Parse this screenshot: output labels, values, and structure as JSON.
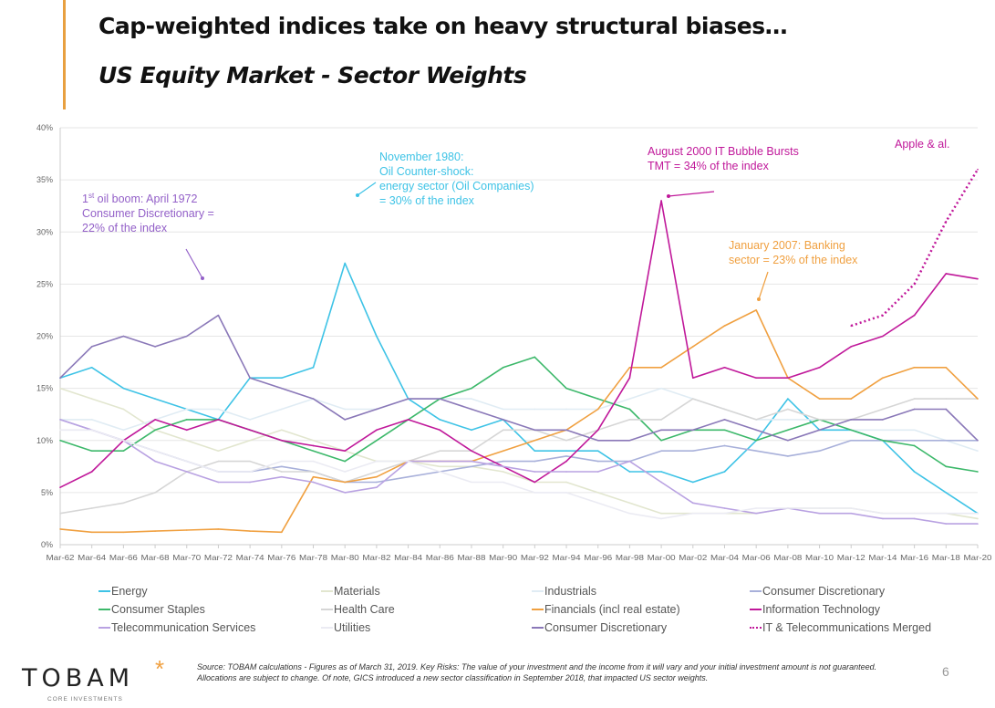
{
  "header": {
    "title": "Cap-weighted indices take on heavy structural biases…",
    "subtitle": "US Equity Market - Sector Weights"
  },
  "chart_data": {
    "type": "line",
    "title": "",
    "xlabel": "",
    "ylabel": "",
    "ylim": [
      0,
      40
    ],
    "y_ticks": [
      "0%",
      "5%",
      "10%",
      "15%",
      "20%",
      "25%",
      "30%",
      "35%",
      "40%"
    ],
    "y_tick_values": [
      0,
      5,
      10,
      15,
      20,
      25,
      30,
      35,
      40
    ],
    "x_ticks": [
      "Mar-62",
      "Mar-64",
      "Mar-66",
      "Mar-68",
      "Mar-70",
      "Mar-72",
      "Mar-74",
      "Mar-76",
      "Mar-78",
      "Mar-80",
      "Mar-82",
      "Mar-84",
      "Mar-86",
      "Mar-88",
      "Mar-90",
      "Mar-92",
      "Mar-94",
      "Mar-96",
      "Mar-98",
      "Mar-00",
      "Mar-02",
      "Mar-04",
      "Mar-06",
      "Mar-08",
      "Mar-10",
      "Mar-12",
      "Mar-14",
      "Mar-16",
      "Mar-18",
      "Mar-20"
    ],
    "x": [
      1962,
      1964,
      1966,
      1968,
      1970,
      1972,
      1974,
      1976,
      1978,
      1980,
      1982,
      1984,
      1986,
      1988,
      1990,
      1992,
      1994,
      1996,
      1998,
      2000,
      2002,
      2004,
      2006,
      2008,
      2010,
      2012,
      2014,
      2016,
      2018,
      2020
    ],
    "grid": true,
    "legend_position": "bottom",
    "series": [
      {
        "name": "Energy",
        "color": "#3ec3e6",
        "style": "solid",
        "values": [
          16,
          17,
          15,
          14,
          13,
          12,
          16,
          16,
          17,
          27,
          20,
          14,
          12,
          11,
          12,
          9,
          9,
          9,
          7,
          7,
          6,
          7,
          10,
          14,
          11,
          11,
          10,
          7,
          5,
          3
        ]
      },
      {
        "name": "Materials",
        "color": "#e2e6cf",
        "style": "solid",
        "values": [
          15,
          14,
          13,
          11,
          10,
          9,
          10,
          11,
          10,
          9,
          8,
          8,
          7.5,
          7.5,
          7,
          6,
          6,
          5,
          4,
          3,
          3,
          3,
          3,
          3.5,
          3.5,
          3.5,
          3,
          3,
          3,
          2.5
        ]
      },
      {
        "name": "Industrials",
        "color": "#e0ecf4",
        "style": "solid",
        "values": [
          12,
          12,
          11,
          12,
          13,
          13,
          12,
          13,
          14,
          13,
          13,
          14,
          14,
          14,
          13,
          13,
          13,
          13,
          14,
          15,
          14,
          13,
          12,
          12,
          12,
          11,
          11,
          11,
          10,
          9
        ]
      },
      {
        "name": "Consumer Discretionary",
        "color": "#a8b0da",
        "style": "solid",
        "values": [
          12,
          11,
          10,
          9,
          8,
          7,
          7,
          7.5,
          7,
          6,
          6,
          6.5,
          7,
          7.5,
          8,
          8,
          8.5,
          8,
          8,
          9,
          9,
          9.5,
          9,
          8.5,
          9,
          10,
          10,
          10,
          10,
          10
        ]
      },
      {
        "name": "Consumer Staples",
        "color": "#3cb86a",
        "style": "solid",
        "values": [
          10,
          9,
          9,
          11,
          12,
          12,
          11,
          10,
          9,
          8,
          10,
          12,
          14,
          15,
          17,
          18,
          15,
          14,
          13,
          10,
          11,
          11,
          10,
          11,
          12,
          11,
          10,
          9.5,
          7.5,
          7
        ]
      },
      {
        "name": "Health Care",
        "color": "#d6d6d6",
        "style": "solid",
        "values": [
          3,
          3.5,
          4,
          5,
          7,
          8,
          8,
          7,
          7,
          6,
          7,
          8,
          9,
          9,
          11,
          11,
          10,
          11,
          12,
          12,
          14,
          13,
          12,
          13,
          12,
          12,
          13,
          14,
          14,
          14
        ]
      },
      {
        "name": "Financials (incl real estate)",
        "color": "#f0a040",
        "style": "solid",
        "values": [
          1.5,
          1.2,
          1.2,
          1.3,
          1.4,
          1.5,
          1.3,
          1.2,
          6.5,
          6,
          6.5,
          8,
          8,
          8,
          9,
          10,
          11,
          13,
          17,
          17,
          19,
          21,
          22.5,
          16,
          14,
          14,
          16,
          17,
          17,
          14
        ]
      },
      {
        "name": "Information Technology",
        "color": "#c0189a",
        "style": "solid",
        "values": [
          5.5,
          7,
          10,
          12,
          11,
          12,
          11,
          10,
          9.5,
          9,
          11,
          12,
          11,
          9,
          7.5,
          6,
          8,
          11,
          16,
          33,
          16,
          17,
          16,
          16,
          17,
          19,
          20,
          22,
          26,
          25.5
        ]
      },
      {
        "name": "Telecommunication Services",
        "color": "#b9a2e2",
        "style": "solid",
        "values": [
          12,
          11,
          10,
          8,
          7,
          6,
          6,
          6.5,
          6,
          5,
          5.5,
          8,
          8,
          8,
          7.5,
          7,
          7,
          7,
          8,
          6,
          4,
          3.5,
          3,
          3.5,
          3,
          3,
          2.5,
          2.5,
          2,
          2
        ]
      },
      {
        "name": "Utilities",
        "color": "#ebebf3",
        "style": "solid",
        "values": [
          11,
          11,
          10,
          9,
          8,
          7,
          7,
          8,
          8,
          7,
          8,
          8,
          7,
          6,
          6,
          5,
          5,
          4,
          3,
          2.5,
          3,
          3,
          3.5,
          3.5,
          3.5,
          3.5,
          3,
          3,
          3,
          3
        ]
      },
      {
        "name": "Consumer Discretionary",
        "color": "#8a78b8",
        "style": "solid",
        "values": [
          16,
          19,
          20,
          19,
          20,
          22,
          16,
          15,
          14,
          12,
          13,
          14,
          14,
          13,
          12,
          11,
          11,
          10,
          10,
          11,
          11,
          12,
          11,
          10,
          11,
          12,
          12,
          13,
          13,
          10
        ]
      },
      {
        "name": "IT & Telecommunications Merged",
        "color": "#c0189a",
        "style": "dotted",
        "values": [
          null,
          null,
          null,
          null,
          null,
          null,
          null,
          null,
          null,
          null,
          null,
          null,
          null,
          null,
          null,
          null,
          null,
          null,
          null,
          null,
          null,
          null,
          null,
          null,
          null,
          21,
          22,
          25,
          31,
          36
        ]
      }
    ],
    "annotations": [
      {
        "id": "oil-boom",
        "color": "#9360c8",
        "lines": [
          "1st oil boom:  April 1972",
          "Consumer Discretionary =",
          "22% of the index"
        ]
      },
      {
        "id": "oil-shock",
        "color": "#3ec3e6",
        "lines": [
          "November 1980:",
          "Oil Counter-shock:",
          "energy sector (Oil Companies)",
          "= 30% of the index"
        ]
      },
      {
        "id": "it-bubble",
        "color": "#c0189a",
        "lines": [
          "August 2000 IT Bubble Bursts",
          "TMT = 34% of the index"
        ]
      },
      {
        "id": "banking",
        "color": "#f0a040",
        "lines": [
          "January 2007: Banking",
          "sector = 23% of the index"
        ]
      },
      {
        "id": "apple",
        "color": "#c0189a",
        "lines": [
          "Apple & al."
        ]
      }
    ]
  },
  "footer": {
    "logo": "TOBAM",
    "logo_sub": "CORE INVESTMENTS",
    "source": "Source:  TOBAM calculations - Figures as of March 31, 2019. Key Risks: The value of your investment and the income from it will vary and your initial investment amount is not guaranteed. Allocations are subject to change. Of note, GICS introduced a new sector classification in September 2018, that impacted US sector weights.",
    "page_number": "6"
  }
}
